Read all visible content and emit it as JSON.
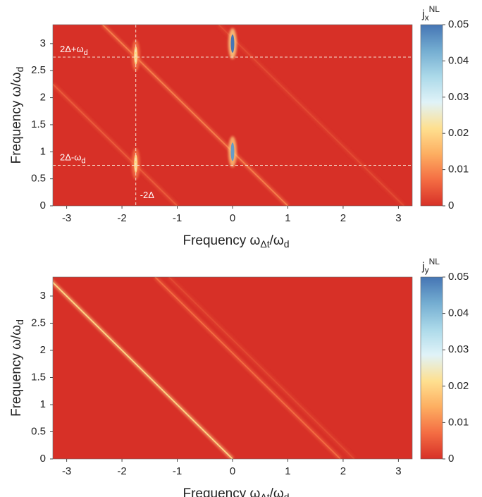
{
  "chart_data": [
    {
      "type": "heatmap",
      "xlabel": [
        "Frequency ω",
        "Δt",
        "/ω",
        "d"
      ],
      "ylabel": [
        "Frequency ω/ω",
        "d"
      ],
      "cbar_label": {
        "base": "j",
        "sub": "x",
        "sup": "NL"
      },
      "xlim": [
        -3.25,
        3.25
      ],
      "ylim": [
        0,
        3.35
      ],
      "clim": [
        0,
        0.05
      ],
      "xticks": [
        -3,
        -2,
        -1,
        0,
        1,
        2,
        3
      ],
      "yticks": [
        0,
        0.5,
        1,
        1.5,
        2,
        2.5,
        3
      ],
      "cticks": [
        0,
        0.01,
        0.02,
        0.03,
        0.04,
        0.05
      ],
      "colormap": [
        "#d73027",
        "#f46d43",
        "#fdae61",
        "#fee090",
        "#e0f3f8",
        "#abd9e9",
        "#74add1",
        "#4575b4"
      ],
      "streaks": [
        {
          "x": [
            -2.35,
            1
          ],
          "y": [
            3.35,
            0
          ],
          "value": 0.009
        },
        {
          "x": [
            -3.25,
            -1
          ],
          "y": [
            2.25,
            0
          ],
          "value": 0.005
        },
        {
          "x": [
            -0.25,
            3.1
          ],
          "y": [
            3.35,
            0
          ],
          "value": 0.003
        }
      ],
      "spots": [
        {
          "x": -1.75,
          "y": 2.78,
          "value": 0.02
        },
        {
          "x": -1.75,
          "y": 0.78,
          "value": 0.02
        },
        {
          "x": 0,
          "y": 3,
          "value": 0.05
        },
        {
          "x": 0,
          "y": 1,
          "value": 0.045
        }
      ],
      "hlines": [
        {
          "y": 2.75,
          "label": [
            "2Δ+ω",
            "d"
          ]
        },
        {
          "y": 0.75,
          "label": [
            "2Δ-ω",
            "d"
          ]
        }
      ],
      "vlines": [
        {
          "x": -1.75,
          "label": [
            "-2Δ"
          ]
        }
      ]
    },
    {
      "type": "heatmap",
      "xlabel": [
        "Frequency ω",
        "Δt",
        "/ω",
        "d"
      ],
      "ylabel": [
        "Frequency ω/ω",
        "d"
      ],
      "cbar_label": {
        "base": "j",
        "sub": "y",
        "sup": "NL"
      },
      "xlim": [
        -3.25,
        3.25
      ],
      "ylim": [
        0,
        3.35
      ],
      "clim": [
        0,
        0.05
      ],
      "xticks": [
        -3,
        -2,
        -1,
        0,
        1,
        2,
        3
      ],
      "yticks": [
        0,
        0.5,
        1,
        1.5,
        2,
        2.5,
        3
      ],
      "cticks": [
        0,
        0.01,
        0.02,
        0.03,
        0.04,
        0.05
      ],
      "colormap": [
        "#d73027",
        "#f46d43",
        "#fdae61",
        "#fee090",
        "#e0f3f8",
        "#abd9e9",
        "#74add1",
        "#4575b4"
      ],
      "streaks": [
        {
          "x": [
            -3.3,
            0
          ],
          "y": [
            3.3,
            0
          ],
          "value": 0.02
        },
        {
          "x": [
            -1.4,
            1.95
          ],
          "y": [
            3.35,
            0
          ],
          "value": 0.007
        },
        {
          "x": [
            -1.15,
            2.2
          ],
          "y": [
            3.35,
            0
          ],
          "value": 0.003
        }
      ],
      "spots": [],
      "hlines": [],
      "vlines": []
    }
  ]
}
